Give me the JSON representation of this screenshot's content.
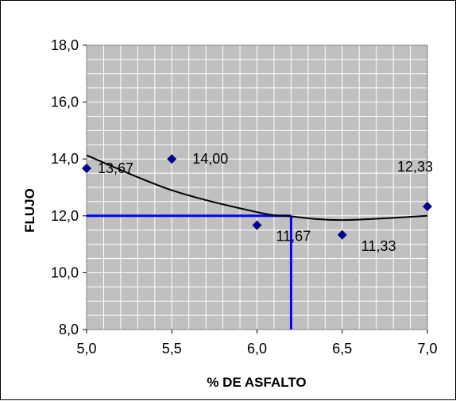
{
  "chart_data": {
    "type": "scatter",
    "xlabel": "% DE ASFALTO",
    "ylabel": "FLUJO",
    "xlim": [
      5.0,
      7.0
    ],
    "ylim": [
      8.0,
      18.0
    ],
    "x_major_ticks": [
      5.0,
      5.5,
      6.0,
      6.5,
      7.0
    ],
    "x_minor_step": 0.1,
    "y_major_ticks": [
      8.0,
      10.0,
      12.0,
      14.0,
      16.0,
      18.0
    ],
    "y_minor_step": 0.5,
    "x_tick_labels": [
      "5,0",
      "5,5",
      "6,0",
      "6,5",
      "7,0"
    ],
    "y_tick_labels": [
      "8,0",
      "10,0",
      "12,0",
      "14,0",
      "16,0",
      "18,0"
    ],
    "grid": true,
    "plot_background": "#c0c0c0",
    "grid_color": "#ffffff",
    "points": [
      {
        "x": 5.0,
        "y": 13.67,
        "label": "13,67"
      },
      {
        "x": 5.5,
        "y": 14.0,
        "label": "14,00"
      },
      {
        "x": 6.0,
        "y": 11.67,
        "label": "11,67"
      },
      {
        "x": 6.5,
        "y": 11.33,
        "label": "11,33"
      },
      {
        "x": 7.0,
        "y": 12.33,
        "label": "12,33"
      }
    ],
    "marker_color": "#00008b",
    "trendline": {
      "type": "polynomial",
      "color": "#000000",
      "points": [
        [
          5.0,
          14.13
        ],
        [
          5.5,
          12.9
        ],
        [
          6.0,
          12.13
        ],
        [
          6.2,
          11.98
        ],
        [
          6.5,
          11.85
        ],
        [
          7.0,
          12.0
        ]
      ]
    },
    "reference_lines": {
      "color": "#0000ff",
      "x": 6.2,
      "y": 12.0
    }
  }
}
